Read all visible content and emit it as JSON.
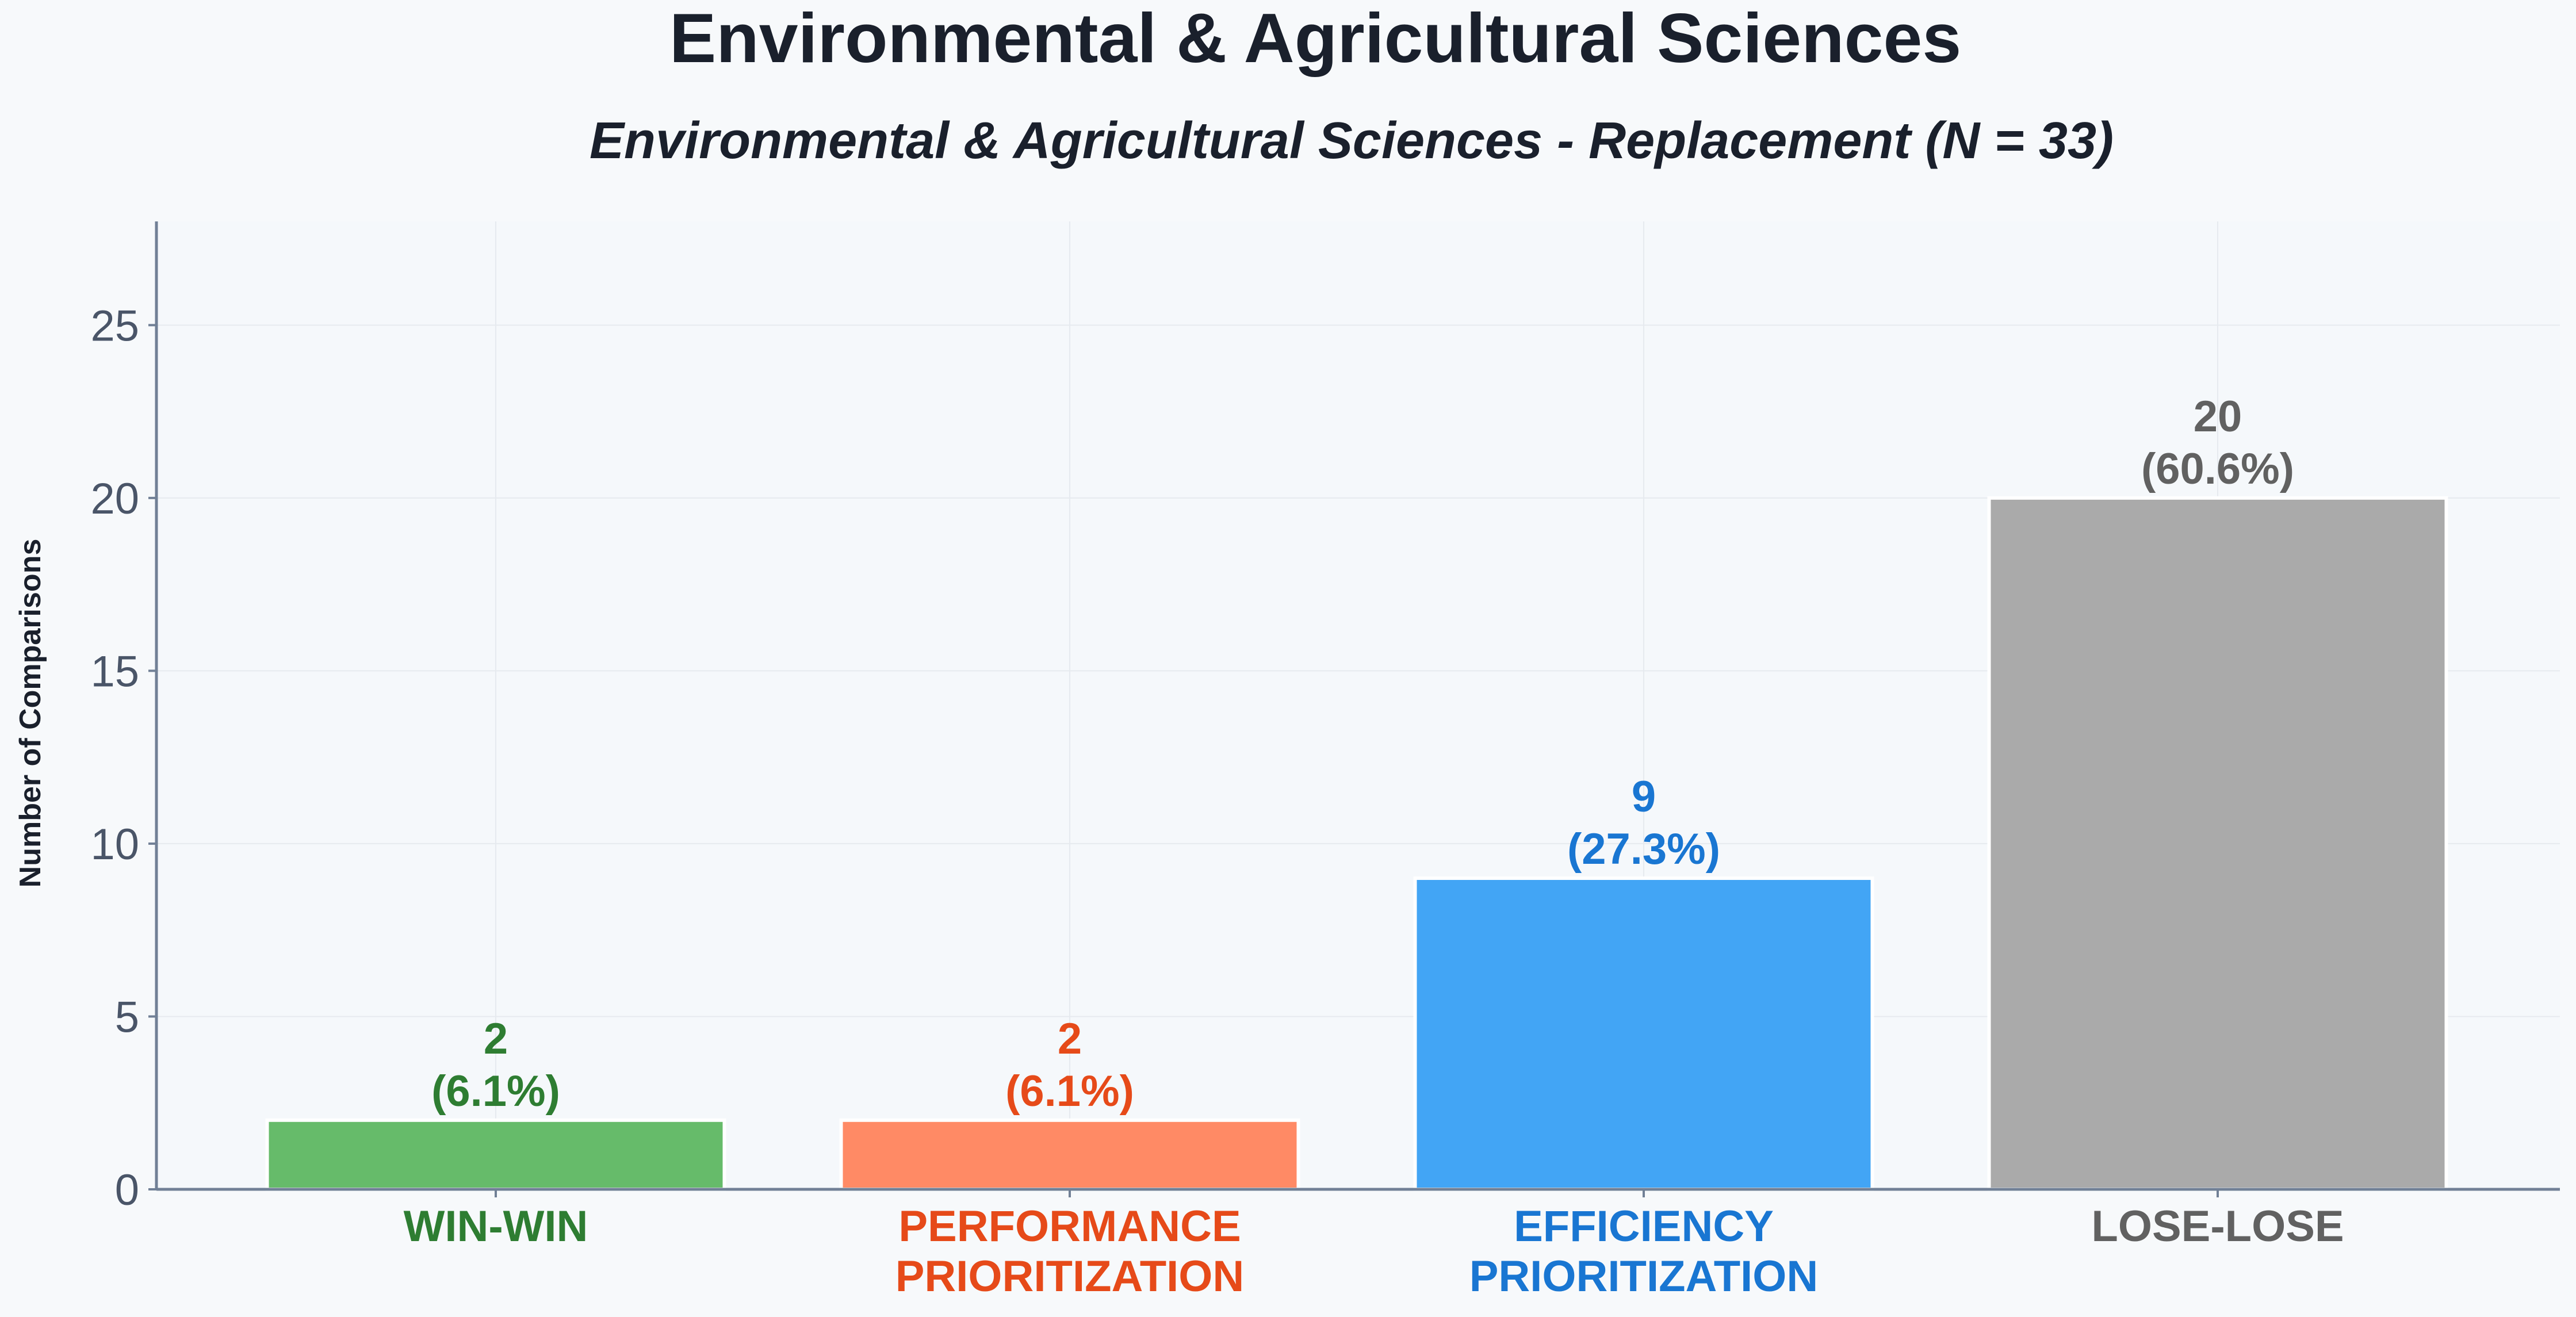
{
  "chart_data": {
    "type": "bar",
    "title": "Environmental & Agricultural Sciences",
    "subtitle": "Environmental & Agricultural Sciences - Replacement (N = 33)",
    "ylabel": "Number of Comparisons",
    "xlabel": "",
    "ylim": [
      0,
      28
    ],
    "yticks": [
      0,
      5,
      10,
      15,
      20,
      25
    ],
    "grid": true,
    "categories": [
      [
        "WIN-WIN"
      ],
      [
        "PERFORMANCE",
        "PRIORITIZATION"
      ],
      [
        "EFFICIENCY",
        "PRIORITIZATION"
      ],
      [
        "LOSE-LOSE"
      ]
    ],
    "values": [
      2,
      2,
      9,
      20
    ],
    "data_labels": [
      [
        "2",
        "(6.1%)"
      ],
      [
        "2",
        "(6.1%)"
      ],
      [
        "9",
        "(27.3%)"
      ],
      [
        "20",
        "(60.6%)"
      ]
    ],
    "bar_colors": [
      "#66bb6a",
      "#ff8a65",
      "#42a5f5",
      "#aaaaaa"
    ],
    "label_colors": [
      "#2e7d32",
      "#e64a19",
      "#1976d2",
      "#616161"
    ]
  }
}
